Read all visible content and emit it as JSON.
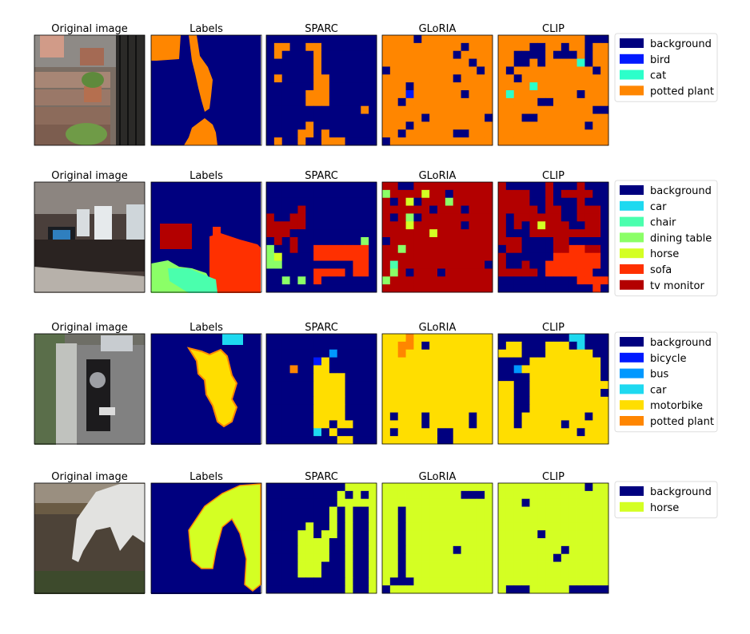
{
  "column_titles": [
    "Original image",
    "Labels",
    "SPARC",
    "GLoRIA",
    "CLIP"
  ],
  "colors": {
    "background": "#00007f",
    "bird": "#0019ff",
    "bicycle": "#0019ff",
    "bus": "#0098ff",
    "cat": "#2cffca",
    "car": "#1ed9f0",
    "chair": "#4affad",
    "dining table": "#8bff67",
    "horse": "#d4ff23",
    "motorbike": "#ffde00",
    "potted plant": "#ff8600",
    "sofa": "#ff3000",
    "tv monitor": "#b30000"
  },
  "rows": [
    {
      "name": "potted-plant-stairs",
      "legend": [
        "background",
        "bird",
        "cat",
        "potted plant"
      ],
      "grids": {
        "SPARC": [
          "BBBBBBBBBBBBBB",
          "BPPBBPPBBBBBBB",
          "BPBBBBPBBBBBBB",
          "BBBBBBPBBBBBBB",
          "BBBBBBPBBBBBBB",
          "BPBBBBPPBBBBBB",
          "BBBBBBPPBBBBBB",
          "BBBBBPPPBBBBBB",
          "BBBBBPPPBBBBBB",
          "BBBBBBBBBBBBPB",
          "BBBBBBBBBBBBBB",
          "BBBBBPBBBBBBBB",
          "BBBBPPBPBBBBBB",
          "BPBBPBBPPPBBBB"
        ],
        "GLoRIA": [
          "PPPPBPPPPPPPPP",
          "PPPPPPPPPPBPPP",
          "PPPPPPPPPBPPPP",
          "PPPPPPPPPPPBPP",
          "BPPPPPPPPPPPBP",
          "PPPPPPPPPBPPPP",
          "PPPBPPPPPPPPPP",
          "PPPWPPPPPPBPPP",
          "PPBPPPPPPPPPPP",
          "PPPPPPPPPPPPPP",
          "PPPPPBPPPPPPPB",
          "PPPBPPPPPPPPPP",
          "PPBPPPPPPBBPPP",
          "BPPPPPPPPPPPPP"
        ],
        "CLIP": [
          "PPPPPPPPPPPBBB",
          "PPPPBBPPBPPBPP",
          "PPBBBBPBBBPBPP",
          "PPBBPBPPPPCBPP",
          "PBPPPPPPPPPPBP",
          "PPBPPPPPPPPPPP",
          "PPPPCPPPPPPPPP",
          "PCPPPPPPPPBPPP",
          "PPPPPBBPPPPPPP",
          "PPPPPPPPPPPPBB",
          "PPPBBPPPPPPPPP",
          "PPPPPPPPPPPBPP",
          "PPPPPPPPPPPPPP",
          "PPPPPPPPPPPPPP"
        ]
      },
      "map": {
        "B": "background",
        "W": "bird",
        "C": "cat",
        "P": "potted plant"
      }
    },
    {
      "name": "living-room",
      "legend": [
        "background",
        "car",
        "chair",
        "dining table",
        "horse",
        "sofa",
        "tv monitor"
      ],
      "grids": {
        "SPARC": [
          "BBBBBBBBBBBBBB",
          "BBBBBBBBBBBBBB",
          "BBBBBBBBBBBBBB",
          "BBBBTBBBBBBBBB",
          "TBBTTBBBBBBBBB",
          "TTTTTBBBBBBBBB",
          "TTTBBBBBBBBBBB",
          "BTBTBBBBBBBBDB",
          "DBBTBBSSSSSSSB",
          "DHBBBBSSSSSSSB",
          "DDBBBBBBBBBSSB",
          "BBBBBBSSSSBSSB",
          "BBDBDBSBBBBBBB",
          "BBBBBBBBBBBBBB"
        ],
        "GLoRIA": [
          "TTBBTTTTTTTTTT",
          "DTTTTHTTBTTTTT",
          "TBTHBTTTDTTTTT",
          "TTTTTTBTTTBTTT",
          "TBTDBTTTTTTTTT",
          "TTTHTTTTTTBTTT",
          "TTTTTTHTTTTTTT",
          "BTTTTTTTTTTTTT",
          "TTDTTTTTTTTTTT",
          "TTTTTTTTTTTTTT",
          "TCTTTTTTTTTTTB",
          "TDTBTTTBTTTTTT",
          "DTTTTTTTTTTTTT",
          "TTTTTTTTTTTTTT"
        ],
        "CLIP": [
          "TBBBBBTBBBTBBB",
          "TTTTBBTBTTTTBB",
          "TTTTBBTBBBTBBB",
          "TTTTTBTTBBTTTB",
          "TBTTTTTTBBTTTB",
          "TBTBTHTTTBBTTB",
          "TBBBTTTTTTTTTB",
          "TTTBBBBTTBBBBB",
          "BTTBBBBTTSSTTB",
          "TBBBBBBSSSSSSB",
          "TBBTBBSSSSSSSB",
          "TTTTTBSSSSSSBB",
          "BBBBBBBBBBSSSS",
          "BBBBBBBBBBBBSB"
        ]
      },
      "map": {
        "B": "background",
        "R": "car",
        "C": "chair",
        "D": "dining table",
        "H": "horse",
        "S": "sofa",
        "T": "tv monitor"
      }
    },
    {
      "name": "motorbike",
      "legend": [
        "background",
        "bicycle",
        "bus",
        "car",
        "motorbike",
        "potted plant"
      ],
      "grids": {
        "SPARC": [
          "BBBBBBBBBBBBBB",
          "BBBBBBBBBBBBBB",
          "BBBBBBBBUBBBBB",
          "BBBBBBKMBBBBBB",
          "BBBPBBMMBBBBBB",
          "BBBBBBMMMMBBBB",
          "BBBBBBMMMMBBBB",
          "BBBBBBMMMMBBBB",
          "BBBBBBMMMMBBBB",
          "BBBBBBMMMMBBBB",
          "BBBBBBMMMMBBBB",
          "BBBBBBMMBMMBBB",
          "BBBBBBCBMBBBBB",
          "BBBBBBBBBMMBBB"
        ],
        "GLoRIA": [
          "MMMPMMMMMMMMMM",
          "MMPPMBMMMMMMMM",
          "MMPMMMMMMMMMMM",
          "MMMMMMMMMMMMMM",
          "MMMMMMMMMMMMMM",
          "MMMMMMMMMMMMMM",
          "MMMMMMMMMMMMMM",
          "MMMMMMMMMMMMMM",
          "MMMMMMMMMMMMMM",
          "MMMMMMMMMMMMMM",
          "MBMMMBMMMMMBMM",
          "MMMMMBMMMMMBMM",
          "MBMMMMMBBMMMMM",
          "MMMMMMMBBMMMMM"
        ],
        "CLIP": [
          "BBBBBBBBBCCBBB",
          "BMMBBBMMMBCBBB",
          "MMMBBBMMMMMMBB",
          "BBBBMMMMMMMMMB",
          "BBUMMMMMMMMMMB",
          "BBBBMMMMMMMMMB",
          "MMBBMMMMMMMMMM",
          "MMBBMMMMMMMMMB",
          "MMBBMMMMMMMMMM",
          "MMBBMMMMMMMMMM",
          "MMBMMMMMMMMBMM",
          "MMBMMMMMBMMMMM",
          "MMMMMMMMMMBMMM",
          "MMMMMMMMMMMMMM"
        ]
      },
      "map": {
        "B": "background",
        "K": "bicycle",
        "U": "bus",
        "C": "car",
        "M": "motorbike",
        "P": "potted plant"
      }
    },
    {
      "name": "horse",
      "legend": [
        "background",
        "horse"
      ],
      "grids": {
        "SPARC": [
          "BBBBBBBBBBHHHH",
          "BBBBBBBBBHBHBH",
          "BBBBBBBBBHHHHH",
          "BBBBBBBBHBHBBH",
          "BBBBBBBBHBHBBH",
          "BBBBBHBBHBHBBH",
          "BBBBHHBHHBHBBH",
          "BBBBHHHHBBHBBH",
          "BBBBHHHHBBHBBH",
          "BBBBHHHHBBHBBH",
          "BBBBHHHBBBHBBH",
          "BBBBHHHBBBHBBH",
          "BBBBBBBBBBHBBH",
          "BBBBBBBBBBHBBH"
        ],
        "GLoRIA": [
          "HHHHHHHHHHHHHH",
          "HHHHHHHHHHBBBH",
          "HHHHHHHHHHHHHH",
          "HHBHHHHHHHHHHH",
          "HHBHHHHHHHHHHH",
          "HHBHHHHHHHHHHH",
          "HHBHHHHHHHHHHH",
          "HHBHHHHHHHHHHH",
          "HHBHHHHHHBHHHH",
          "HHBHHHHHHHHHHH",
          "HHBHHHHHHHHHHH",
          "HHBHHHHHHHHHHH",
          "HBBBHHHHHHHHHH",
          "BHHHHHHHHHHHHH"
        ],
        "CLIP": [
          "HHHHHHHHHHHBHH",
          "HHHHHHHHHHHHHH",
          "HHHBHHHHHHHHHH",
          "HHHHHHHHHHHHHH",
          "HHHHHHHHHHHHHH",
          "HHHHHHHHHHHHHH",
          "HHHHHBHHHHHHHH",
          "HHHHHHHHHHHHHH",
          "HHHHHHHHBHHHHH",
          "HHHHHHHBHHHHHH",
          "HHHHHHHHHHHHHH",
          "HHHHHHHHHHHHHH",
          "HHHHHHHHHHHHHH",
          "HBBBHHHHHBBBBB"
        ]
      },
      "map": {
        "B": "background",
        "H": "horse"
      }
    }
  ]
}
